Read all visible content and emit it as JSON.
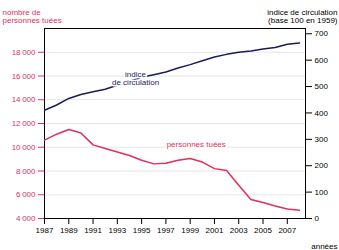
{
  "chart_data": {
    "type": "line",
    "x": [
      1987,
      1988,
      1989,
      1990,
      1991,
      1992,
      1993,
      1994,
      1995,
      1996,
      1997,
      1998,
      1999,
      2000,
      2001,
      2002,
      2003,
      2004,
      2005,
      2006,
      2007,
      2008
    ],
    "xlim": [
      1987,
      2008.5
    ],
    "xticks": [
      1987,
      1989,
      1991,
      1993,
      1995,
      1997,
      1999,
      2001,
      2003,
      2005,
      2007
    ],
    "xlabel": "années",
    "ylabel": "nombre de\npersonnes tuées",
    "ylim": [
      4000,
      20000
    ],
    "yticks": [
      {
        "value": 4000,
        "label": "4 000"
      },
      {
        "value": 6000,
        "label": "6 000"
      },
      {
        "value": 8000,
        "label": "8 000"
      },
      {
        "value": 10000,
        "label": "10 000"
      },
      {
        "value": 12000,
        "label": "12 000"
      },
      {
        "value": 14000,
        "label": "14 000"
      },
      {
        "value": 16000,
        "label": "16 000"
      },
      {
        "value": 18000,
        "label": "18 000"
      }
    ],
    "y2label": "indice de circulation\n(base 100 en 1959)",
    "y2lim": [
      0,
      720
    ],
    "y2ticks": [
      0,
      100,
      200,
      300,
      400,
      500,
      600,
      700
    ],
    "grid": true,
    "series": [
      {
        "color": "#e0305a",
        "values": [
          10600,
          11100,
          11500,
          11200,
          10200,
          9900,
          9600,
          9300,
          8900,
          8600,
          8650,
          8900,
          9050,
          8750,
          8200,
          8050,
          6800,
          5600,
          5350,
          5050,
          4800,
          4700
        ]
      },
      {
        "color": "#1a1a5e",
        "axis": "y2",
        "values": [
          410,
          430,
          455,
          470,
          480,
          490,
          505,
          520,
          535,
          545,
          555,
          570,
          583,
          598,
          612,
          622,
          630,
          635,
          642,
          648,
          660,
          665
        ]
      }
    ],
    "annotations": [
      {
        "text": "indice\nde circulation",
        "x": 1994.5,
        "y": 530,
        "axis": "y2",
        "color": "#1a1a5e"
      },
      {
        "text": "personnes tuées",
        "x": 1999.5,
        "y": 280,
        "axis": "y2",
        "color": "#e0305a"
      }
    ]
  }
}
